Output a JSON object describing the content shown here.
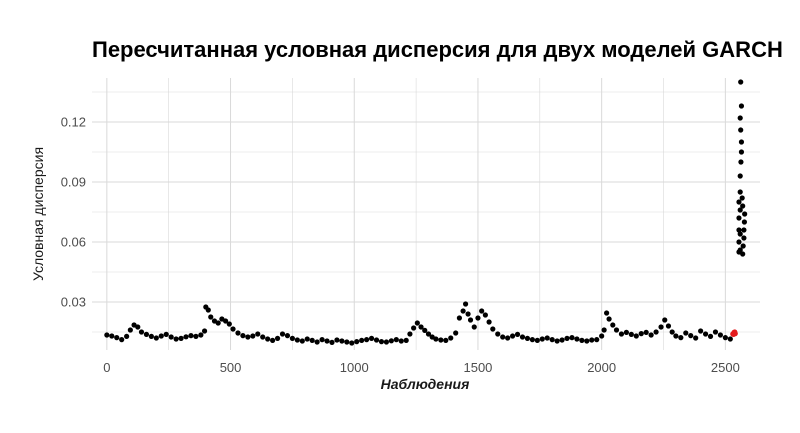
{
  "chart_data": {
    "type": "scatter",
    "title": "Пересчитанная условная дисперсия для двух моделей GARCH",
    "xlabel": "Наблюдения",
    "ylabel": "Условная дисперсия",
    "xlim": [
      -60,
      2640
    ],
    "ylim": [
      0.006,
      0.142
    ],
    "x_ticks": [
      0,
      500,
      1000,
      1500,
      2000,
      2500
    ],
    "x_tick_labels": [
      "0",
      "500",
      "1000",
      "1500",
      "2000",
      "2500"
    ],
    "y_ticks": [
      0.03,
      0.06,
      0.09,
      0.12
    ],
    "y_tick_labels": [
      "0.03",
      "0.06",
      "0.09",
      "0.12"
    ],
    "grid": true,
    "background": "#ffffff",
    "grid_color": "#d9d9d9",
    "series": [
      {
        "color": "#000000",
        "points": [
          [
            0,
            0.0135
          ],
          [
            20,
            0.013
          ],
          [
            40,
            0.0122
          ],
          [
            60,
            0.0112
          ],
          [
            80,
            0.0128
          ],
          [
            95,
            0.016
          ],
          [
            110,
            0.0185
          ],
          [
            125,
            0.0175
          ],
          [
            140,
            0.015
          ],
          [
            160,
            0.0138
          ],
          [
            180,
            0.0128
          ],
          [
            200,
            0.012
          ],
          [
            220,
            0.013
          ],
          [
            240,
            0.0138
          ],
          [
            260,
            0.0125
          ],
          [
            280,
            0.0115
          ],
          [
            300,
            0.0118
          ],
          [
            320,
            0.0126
          ],
          [
            340,
            0.0132
          ],
          [
            360,
            0.0128
          ],
          [
            380,
            0.0135
          ],
          [
            395,
            0.0155
          ],
          [
            400,
            0.0275
          ],
          [
            410,
            0.026
          ],
          [
            420,
            0.0225
          ],
          [
            435,
            0.0205
          ],
          [
            450,
            0.0195
          ],
          [
            465,
            0.0215
          ],
          [
            480,
            0.0205
          ],
          [
            495,
            0.019
          ],
          [
            510,
            0.0165
          ],
          [
            530,
            0.0145
          ],
          [
            550,
            0.0132
          ],
          [
            570,
            0.0125
          ],
          [
            590,
            0.013
          ],
          [
            610,
            0.014
          ],
          [
            630,
            0.0125
          ],
          [
            650,
            0.0115
          ],
          [
            670,
            0.0108
          ],
          [
            690,
            0.0118
          ],
          [
            710,
            0.014
          ],
          [
            730,
            0.0132
          ],
          [
            750,
            0.0118
          ],
          [
            770,
            0.011
          ],
          [
            790,
            0.0105
          ],
          [
            810,
            0.0115
          ],
          [
            830,
            0.0108
          ],
          [
            850,
            0.01
          ],
          [
            870,
            0.0112
          ],
          [
            890,
            0.0105
          ],
          [
            910,
            0.0098
          ],
          [
            930,
            0.011
          ],
          [
            950,
            0.0105
          ],
          [
            970,
            0.01
          ],
          [
            990,
            0.0095
          ],
          [
            1010,
            0.0102
          ],
          [
            1030,
            0.0108
          ],
          [
            1050,
            0.0112
          ],
          [
            1070,
            0.0118
          ],
          [
            1090,
            0.011
          ],
          [
            1110,
            0.0102
          ],
          [
            1130,
            0.01
          ],
          [
            1150,
            0.0106
          ],
          [
            1170,
            0.0112
          ],
          [
            1190,
            0.0105
          ],
          [
            1210,
            0.0108
          ],
          [
            1225,
            0.014
          ],
          [
            1240,
            0.017
          ],
          [
            1255,
            0.0195
          ],
          [
            1270,
            0.0175
          ],
          [
            1285,
            0.0158
          ],
          [
            1300,
            0.014
          ],
          [
            1315,
            0.0125
          ],
          [
            1330,
            0.0115
          ],
          [
            1350,
            0.011
          ],
          [
            1370,
            0.0108
          ],
          [
            1390,
            0.012
          ],
          [
            1410,
            0.0145
          ],
          [
            1425,
            0.022
          ],
          [
            1440,
            0.0255
          ],
          [
            1450,
            0.029
          ],
          [
            1460,
            0.024
          ],
          [
            1470,
            0.021
          ],
          [
            1485,
            0.0175
          ],
          [
            1500,
            0.022
          ],
          [
            1515,
            0.0255
          ],
          [
            1530,
            0.0235
          ],
          [
            1545,
            0.02
          ],
          [
            1560,
            0.0165
          ],
          [
            1580,
            0.014
          ],
          [
            1600,
            0.0125
          ],
          [
            1620,
            0.012
          ],
          [
            1640,
            0.013
          ],
          [
            1660,
            0.0138
          ],
          [
            1680,
            0.0125
          ],
          [
            1700,
            0.0118
          ],
          [
            1720,
            0.0112
          ],
          [
            1740,
            0.0108
          ],
          [
            1760,
            0.0115
          ],
          [
            1780,
            0.012
          ],
          [
            1800,
            0.0112
          ],
          [
            1820,
            0.0105
          ],
          [
            1840,
            0.011
          ],
          [
            1860,
            0.0118
          ],
          [
            1880,
            0.0122
          ],
          [
            1900,
            0.0115
          ],
          [
            1920,
            0.0108
          ],
          [
            1940,
            0.0105
          ],
          [
            1960,
            0.011
          ],
          [
            1980,
            0.0112
          ],
          [
            2000,
            0.013
          ],
          [
            2010,
            0.016
          ],
          [
            2020,
            0.0245
          ],
          [
            2030,
            0.0215
          ],
          [
            2045,
            0.0185
          ],
          [
            2060,
            0.016
          ],
          [
            2080,
            0.014
          ],
          [
            2100,
            0.0148
          ],
          [
            2120,
            0.0138
          ],
          [
            2140,
            0.013
          ],
          [
            2160,
            0.0142
          ],
          [
            2180,
            0.0148
          ],
          [
            2200,
            0.0135
          ],
          [
            2220,
            0.015
          ],
          [
            2240,
            0.0175
          ],
          [
            2255,
            0.021
          ],
          [
            2270,
            0.018
          ],
          [
            2285,
            0.015
          ],
          [
            2300,
            0.013
          ],
          [
            2320,
            0.0122
          ],
          [
            2340,
            0.0145
          ],
          [
            2360,
            0.0132
          ],
          [
            2380,
            0.012
          ],
          [
            2400,
            0.0155
          ],
          [
            2420,
            0.014
          ],
          [
            2440,
            0.0128
          ],
          [
            2460,
            0.015
          ],
          [
            2480,
            0.0135
          ],
          [
            2500,
            0.0122
          ],
          [
            2520,
            0.0115
          ]
        ]
      },
      {
        "color": "#000000",
        "points": [
          [
            2555,
            0.06
          ],
          [
            2555,
            0.066
          ],
          [
            2555,
            0.072
          ],
          [
            2555,
            0.08
          ],
          [
            2555,
            0.055
          ],
          [
            2560,
            0.056
          ],
          [
            2560,
            0.064
          ],
          [
            2560,
            0.076
          ],
          [
            2560,
            0.085
          ],
          [
            2560,
            0.093
          ],
          [
            2563,
            0.1
          ],
          [
            2565,
            0.105
          ],
          [
            2565,
            0.11
          ],
          [
            2562,
            0.116
          ],
          [
            2560,
            0.122
          ],
          [
            2565,
            0.128
          ],
          [
            2562,
            0.14
          ],
          [
            2568,
            0.082
          ],
          [
            2570,
            0.078
          ],
          [
            2570,
            0.054
          ],
          [
            2572,
            0.058
          ],
          [
            2575,
            0.062
          ],
          [
            2575,
            0.066
          ],
          [
            2577,
            0.07
          ],
          [
            2578,
            0.074
          ]
        ]
      },
      {
        "color": "#e31a1c",
        "points": [
          [
            2530,
            0.014
          ],
          [
            2535,
            0.0148
          ],
          [
            2540,
            0.0142
          ],
          [
            2538,
            0.015
          ],
          [
            2533,
            0.0138
          ]
        ]
      }
    ]
  }
}
